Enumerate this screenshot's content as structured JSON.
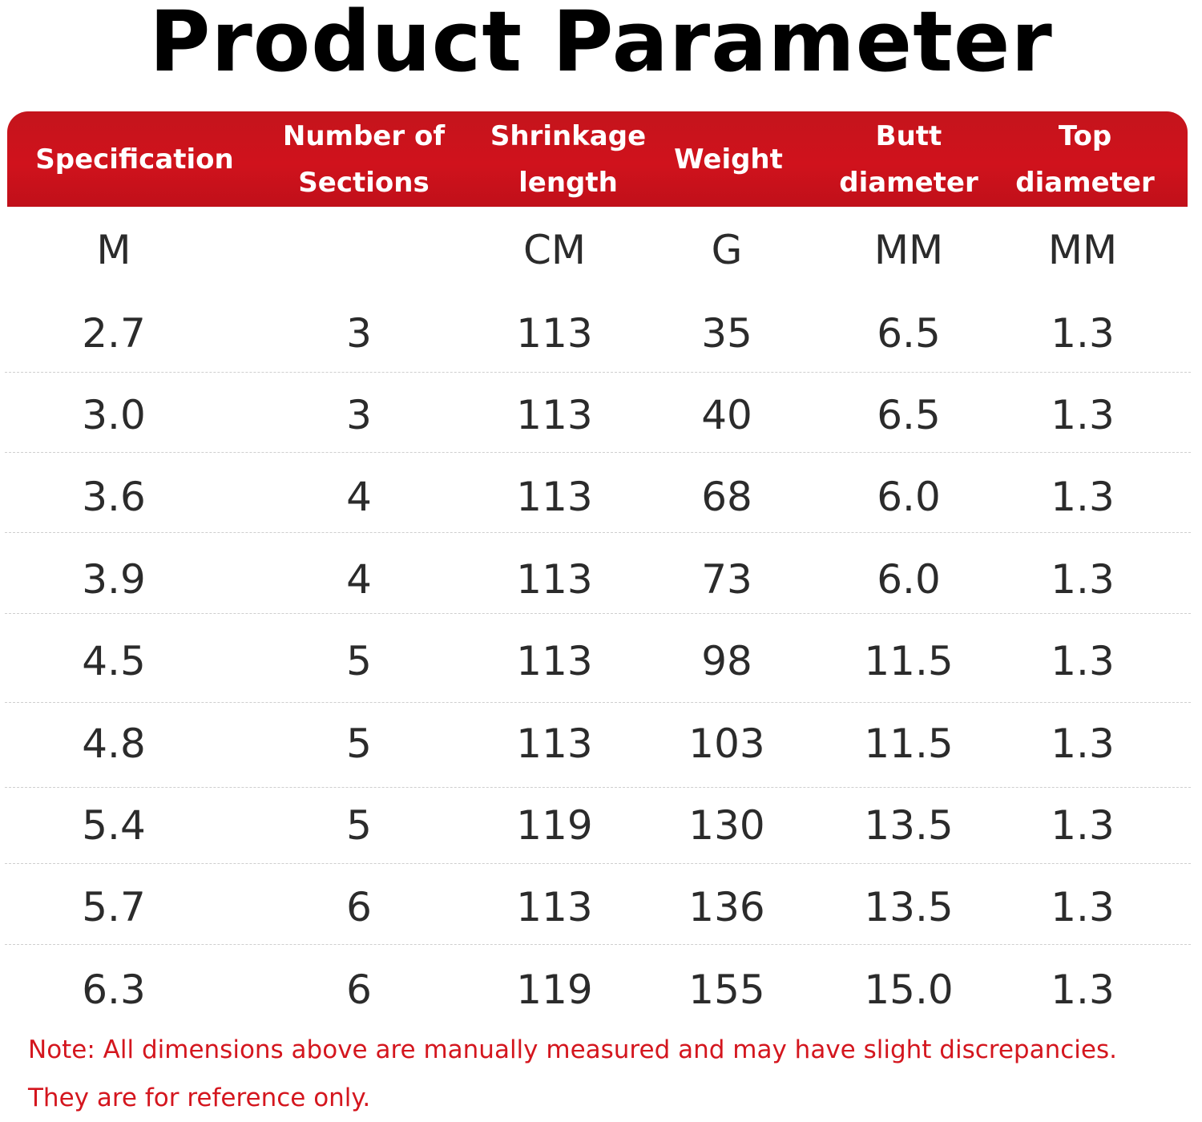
{
  "title": "Product Parameter",
  "headers": [
    "Specification",
    "Number of Sections",
    "Shrinkage length",
    "Weight",
    "Butt diameter",
    "Top diameter"
  ],
  "units": [
    "M",
    "",
    "CM",
    "G",
    "MM",
    "MM"
  ],
  "rows": [
    [
      "2.7",
      "3",
      "113",
      "35",
      "6.5",
      "1.3"
    ],
    [
      "3.0",
      "3",
      "113",
      "40",
      "6.5",
      "1.3"
    ],
    [
      "3.6",
      "4",
      "113",
      "68",
      "6.0",
      "1.3"
    ],
    [
      "3.9",
      "4",
      "113",
      "73",
      "6.0",
      "1.3"
    ],
    [
      "4.5",
      "5",
      "113",
      "98",
      "11.5",
      "1.3"
    ],
    [
      "4.8",
      "5",
      "113",
      "103",
      "11.5",
      "1.3"
    ],
    [
      "5.4",
      "5",
      "119",
      "130",
      "13.5",
      "1.3"
    ],
    [
      "5.7",
      "6",
      "113",
      "136",
      "13.5",
      "1.3"
    ],
    [
      "6.3",
      "6",
      "119",
      "155",
      "15.0",
      "1.3"
    ]
  ],
  "note": {
    "line1": "Note: All dimensions above are manually measured and may have slight discrepancies.",
    "line2": "They are for reference only."
  },
  "colors": {
    "header_bg": "#d0121c",
    "header_text": "#ffffff",
    "note_text": "#d4161e",
    "body_text": "#2b2b2b"
  }
}
